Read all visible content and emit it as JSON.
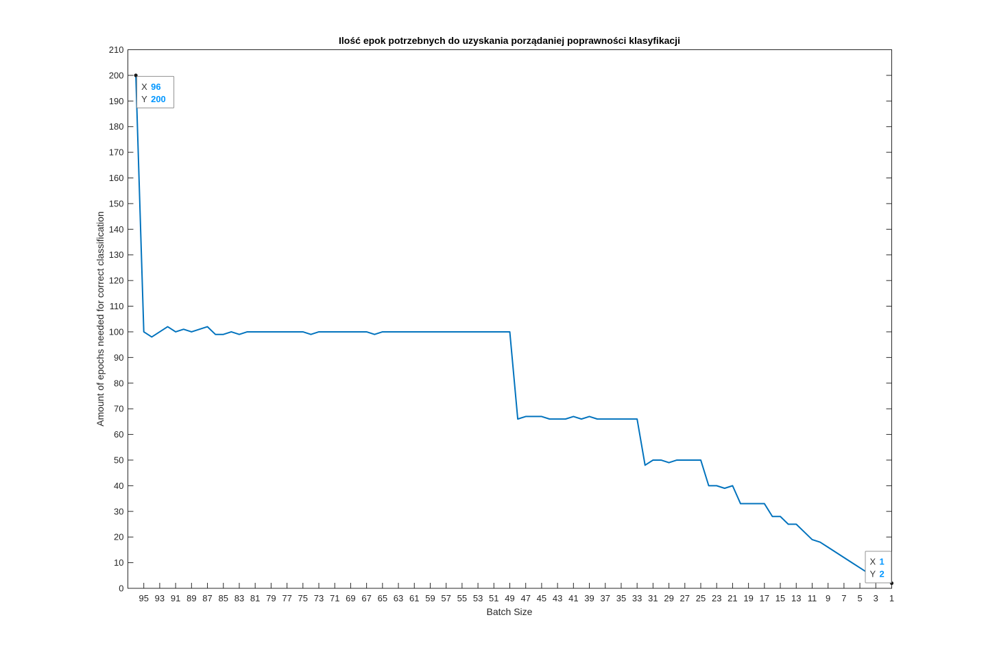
{
  "chart_data": {
    "type": "line",
    "title": "Ilość epok potrzebnych do uzyskania porządaniej poprawności klasyfikacji",
    "xlabel": "Batch Size",
    "ylabel": "Amount of epochs needed for correct classification",
    "xlim": [
      1,
      96
    ],
    "x_reversed": true,
    "ylim": [
      0,
      210
    ],
    "xticks": [
      95,
      93,
      91,
      89,
      87,
      85,
      83,
      81,
      79,
      77,
      75,
      73,
      71,
      69,
      67,
      65,
      63,
      61,
      59,
      57,
      55,
      53,
      51,
      49,
      47,
      45,
      43,
      41,
      39,
      37,
      35,
      33,
      31,
      29,
      27,
      25,
      23,
      21,
      19,
      17,
      15,
      13,
      11,
      9,
      7,
      5,
      3,
      1
    ],
    "yticks": [
      0,
      10,
      20,
      30,
      40,
      50,
      60,
      70,
      80,
      90,
      100,
      110,
      120,
      130,
      140,
      150,
      160,
      170,
      180,
      190,
      200,
      210
    ],
    "grid": false,
    "line_color": "#0072bd",
    "series": [
      {
        "x": [
          96,
          95,
          94,
          93,
          92,
          91,
          90,
          89,
          88,
          87,
          86,
          85,
          84,
          83,
          82,
          81,
          80,
          79,
          78,
          77,
          76,
          75,
          74,
          73,
          72,
          71,
          70,
          69,
          68,
          67,
          66,
          65,
          64,
          63,
          62,
          61,
          60,
          59,
          58,
          57,
          56,
          55,
          54,
          53,
          52,
          51,
          50,
          49,
          48,
          47,
          46,
          45,
          44,
          43,
          42,
          41,
          40,
          39,
          38,
          37,
          36,
          35,
          34,
          33,
          32,
          31,
          30,
          29,
          28,
          27,
          26,
          25,
          24,
          23,
          22,
          21,
          20,
          19,
          18,
          17,
          16,
          15,
          14,
          13,
          12,
          11,
          10,
          9,
          8,
          7,
          6,
          5,
          4,
          3,
          2,
          1
        ],
        "y": [
          200,
          100,
          98,
          100,
          102,
          100,
          101,
          100,
          101,
          102,
          99,
          99,
          100,
          99,
          100,
          100,
          100,
          100,
          100,
          100,
          100,
          100,
          99,
          100,
          100,
          100,
          100,
          100,
          100,
          100,
          99,
          100,
          100,
          100,
          100,
          100,
          100,
          100,
          100,
          100,
          100,
          100,
          100,
          100,
          100,
          100,
          100,
          100,
          66,
          67,
          67,
          67,
          66,
          66,
          66,
          67,
          66,
          67,
          66,
          66,
          66,
          66,
          66,
          66,
          48,
          50,
          50,
          49,
          50,
          50,
          50,
          50,
          40,
          40,
          39,
          40,
          33,
          33,
          33,
          33,
          28,
          28,
          25,
          25,
          22,
          19,
          18,
          16,
          14,
          12,
          10,
          8,
          6,
          4,
          3,
          2
        ]
      }
    ],
    "datatips": [
      {
        "x_label": "X",
        "x_value": "96",
        "y_label": "Y",
        "y_value": "200",
        "x": 96,
        "y": 200
      },
      {
        "x_label": "X",
        "x_value": "1",
        "y_label": "Y",
        "y_value": "2",
        "x": 1,
        "y": 2
      }
    ]
  }
}
